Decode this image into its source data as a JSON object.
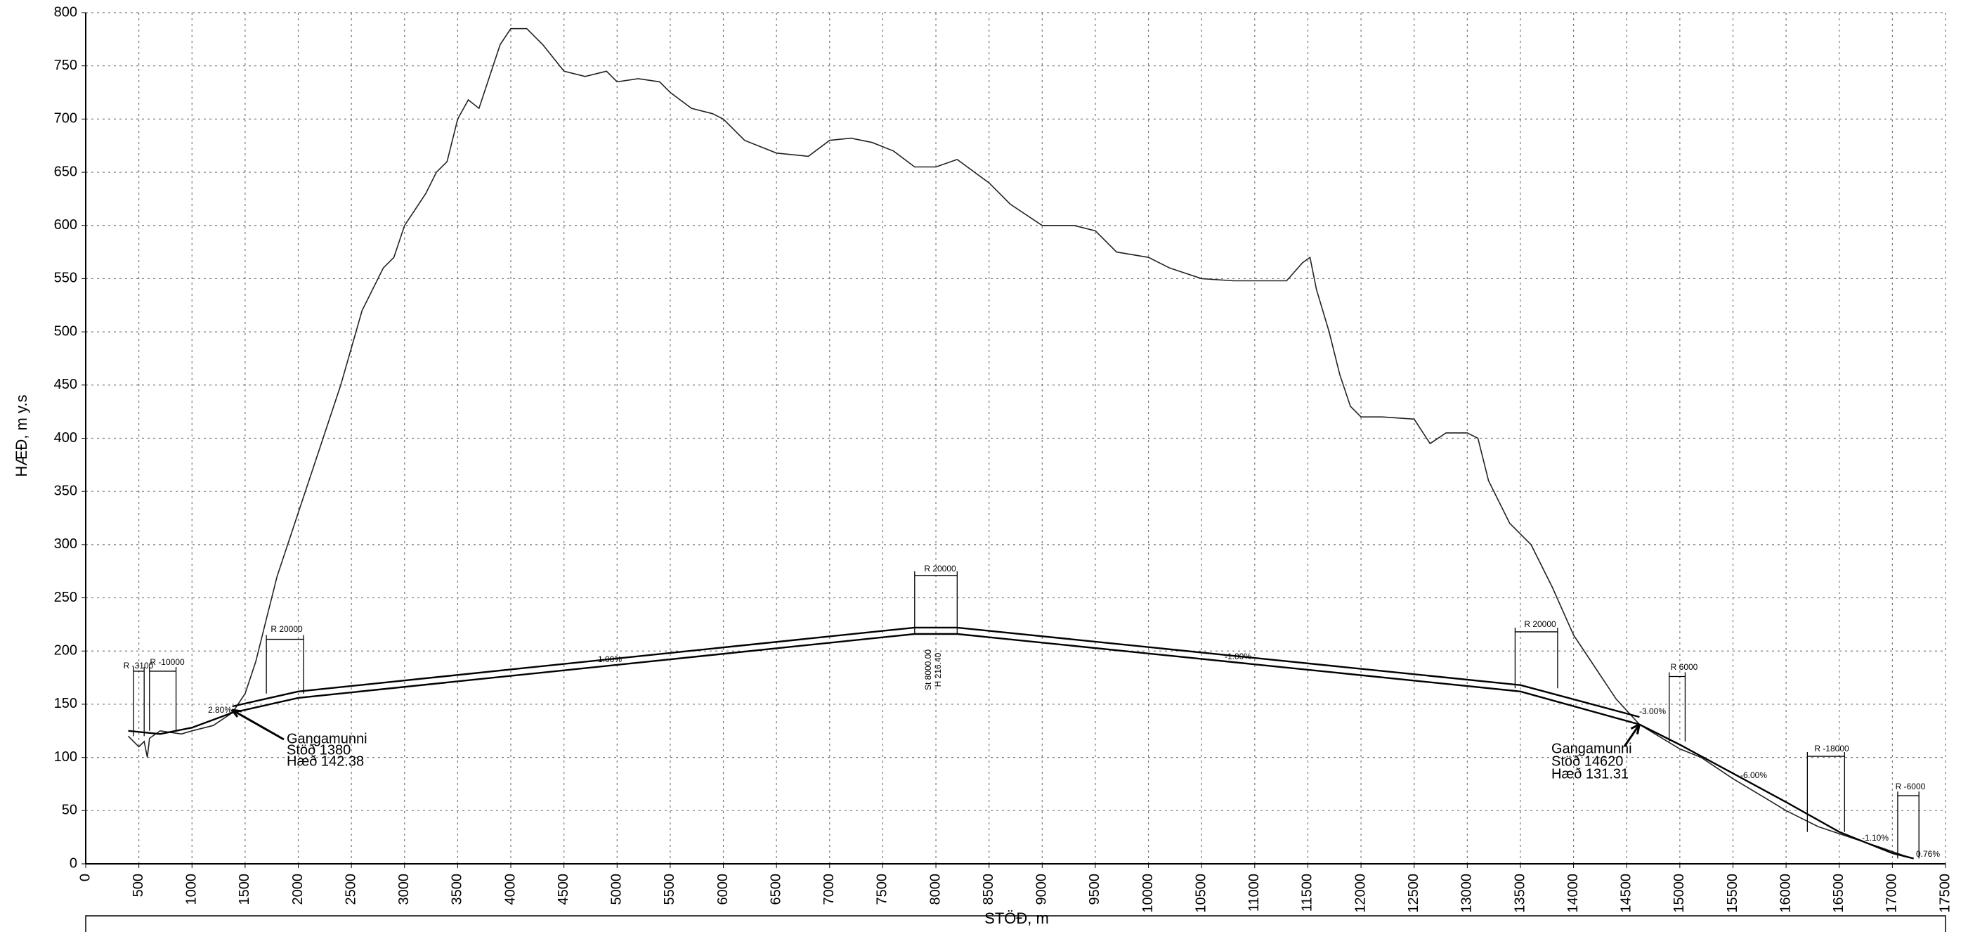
{
  "chart_data": {
    "type": "line",
    "xlabel": "STÖÐ, m",
    "ylabel": "HÆÐ, m y.s",
    "xlim": [
      0,
      17500
    ],
    "ylim": [
      0,
      800
    ],
    "xticks": [
      0,
      500,
      1000,
      1500,
      2000,
      2500,
      3000,
      3500,
      4000,
      4500,
      5000,
      5500,
      6000,
      6500,
      7000,
      7500,
      8000,
      8500,
      9000,
      9500,
      10000,
      10500,
      11000,
      11500,
      12000,
      12500,
      13000,
      13500,
      14000,
      14500,
      15000,
      15500,
      16000,
      16500,
      17000,
      17500
    ],
    "yticks": [
      0,
      50,
      100,
      150,
      200,
      250,
      300,
      350,
      400,
      450,
      500,
      550,
      600,
      650,
      700,
      750,
      800
    ],
    "grid": true,
    "series": [
      {
        "color": "#222222",
        "x": [
          400,
          500,
          550,
          580,
          600,
          700,
          900,
          1000,
          1200,
          1380,
          1500,
          1600,
          1700,
          1800,
          1900,
          2000,
          2200,
          2400,
          2600,
          2800,
          2900,
          3000,
          3200,
          3300,
          3400,
          3500,
          3600,
          3700,
          3800,
          3900,
          4000,
          4150,
          4300,
          4500,
          4700,
          4900,
          5000,
          5200,
          5400,
          5500,
          5700,
          5900,
          6000,
          6200,
          6500,
          6800,
          7000,
          7200,
          7400,
          7600,
          7800,
          8000,
          8200,
          8500,
          8700,
          9000,
          9300,
          9500,
          9700,
          10000,
          10200,
          10500,
          10800,
          11000,
          11300,
          11450,
          11520,
          11580,
          11700,
          11800,
          11900,
          12000,
          12200,
          12500,
          12650,
          12800,
          13000,
          13100,
          13200,
          13400,
          13600,
          13800,
          14000,
          14200,
          14400,
          14620,
          14800,
          15000,
          15200,
          15500,
          15800,
          16000,
          16300,
          16600,
          16900,
          17100,
          17200
        ],
        "values": [
          120,
          110,
          115,
          100,
          118,
          125,
          122,
          125,
          130,
          142,
          160,
          190,
          230,
          270,
          300,
          330,
          390,
          450,
          520,
          560,
          570,
          600,
          630,
          650,
          660,
          700,
          718,
          710,
          740,
          770,
          785,
          785,
          770,
          745,
          740,
          745,
          735,
          738,
          735,
          725,
          710,
          705,
          700,
          680,
          668,
          665,
          680,
          682,
          678,
          670,
          655,
          655,
          662,
          640,
          620,
          600,
          600,
          595,
          575,
          570,
          560,
          550,
          548,
          548,
          548,
          565,
          570,
          540,
          500,
          460,
          430,
          420,
          420,
          418,
          395,
          405,
          405,
          400,
          360,
          320,
          300,
          260,
          215,
          185,
          155,
          131,
          120,
          108,
          100,
          80,
          62,
          50,
          35,
          25,
          15,
          8,
          5
        ]
      },
      {
        "color": "#000000",
        "x": [
          1380,
          2000,
          7800,
          8200,
          13500,
          14620
        ],
        "values": [
          148,
          162,
          222,
          222,
          168,
          138
        ]
      },
      {
        "color": "#000000",
        "x": [
          1380,
          2000,
          7800,
          8200,
          13500,
          14620
        ],
        "values": [
          142,
          156,
          216,
          216,
          162,
          131
        ]
      },
      {
        "color": "#000000",
        "x": [
          400,
          700,
          1000,
          1380
        ],
        "values": [
          125,
          122,
          128,
          142
        ]
      },
      {
        "color": "#000000",
        "x": [
          14620,
          15000,
          15500,
          16000,
          16500,
          17000,
          17200
        ],
        "values": [
          131,
          112,
          85,
          58,
          30,
          10,
          5
        ]
      }
    ],
    "annotations": [
      "Gangamunni",
      "Stöð 1380",
      "Hæð 142.38",
      "Gangamunni",
      "Stöð 14620",
      "Hæð 131.31"
    ],
    "small_labels": [
      "R 20000",
      "R 20000",
      "R 20000",
      "R -10000",
      "R -3100",
      "R 6000",
      "R -18000",
      "R -6000",
      "1.00%",
      "-1.00%",
      "2.80%",
      "-3.00%",
      "-6.00%",
      "-1.10%",
      "0.76%",
      "St 8000.00",
      "H 216.40"
    ]
  }
}
